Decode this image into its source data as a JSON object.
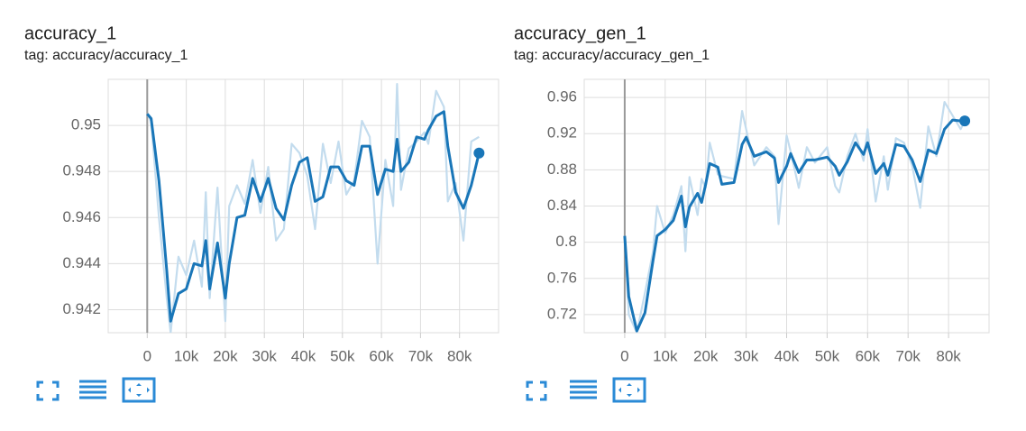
{
  "chart_data": [
    {
      "type": "line",
      "title": "accuracy_1",
      "subtitle": "tag: accuracy/accuracy_1",
      "x": [
        0,
        1000,
        3000,
        5000,
        6000,
        8000,
        10000,
        12000,
        14000,
        15000,
        16000,
        18000,
        20000,
        21000,
        23000,
        25000,
        27000,
        29000,
        31000,
        33000,
        35000,
        37000,
        39000,
        41000,
        43000,
        45000,
        47000,
        49000,
        51000,
        53000,
        55000,
        57000,
        59000,
        61000,
        63000,
        64000,
        65000,
        67000,
        69000,
        71000,
        72000,
        74000,
        76000,
        77000,
        79000,
        81000,
        83000,
        85000
      ],
      "series": [
        {
          "color": "#c3dcee",
          "values": [
            0.9505,
            0.9502,
            0.946,
            0.9425,
            0.941,
            0.9443,
            0.9435,
            0.945,
            0.943,
            0.9471,
            0.9425,
            0.9473,
            0.9415,
            0.9465,
            0.9474,
            0.9466,
            0.9485,
            0.9462,
            0.9482,
            0.945,
            0.9455,
            0.9492,
            0.9488,
            0.9478,
            0.9455,
            0.9492,
            0.9475,
            0.9493,
            0.947,
            0.9476,
            0.9502,
            0.9495,
            0.944,
            0.9485,
            0.9465,
            0.9518,
            0.9472,
            0.949,
            0.9493,
            0.9497,
            0.9492,
            0.9515,
            0.9508,
            0.9467,
            0.9475,
            0.945,
            0.9493,
            0.9495
          ]
        },
        {
          "color": "#1976b8",
          "values": [
            0.9505,
            0.9503,
            0.9476,
            0.9437,
            0.9415,
            0.9427,
            0.9429,
            0.944,
            0.9439,
            0.945,
            0.9429,
            0.9449,
            0.9425,
            0.944,
            0.946,
            0.9461,
            0.9477,
            0.9467,
            0.9477,
            0.9464,
            0.9459,
            0.9474,
            0.9484,
            0.9486,
            0.9467,
            0.9469,
            0.9482,
            0.9482,
            0.9476,
            0.9474,
            0.9491,
            0.9491,
            0.947,
            0.9481,
            0.948,
            0.9494,
            0.948,
            0.9484,
            0.9495,
            0.9494,
            0.9498,
            0.9504,
            0.9506,
            0.9491,
            0.9471,
            0.9464,
            0.9474,
            0.9488
          ]
        }
      ],
      "xlim": [
        -10000,
        90000
      ],
      "xticks": [
        0,
        {
          "value": 10000,
          "label": "10k"
        },
        {
          "value": 20000,
          "label": "20k"
        },
        {
          "value": 30000,
          "label": "30k"
        },
        {
          "value": 40000,
          "label": "40k"
        },
        {
          "value": 50000,
          "label": "50k"
        },
        {
          "value": 60000,
          "label": "60k"
        },
        {
          "value": 70000,
          "label": "70k"
        },
        {
          "value": 80000,
          "label": "80k"
        }
      ],
      "ylim": [
        0.941,
        0.952
      ],
      "yticks": [
        0.942,
        0.944,
        0.946,
        0.948,
        0.95
      ],
      "grid": true
    },
    {
      "type": "line",
      "title": "accuracy_gen_1",
      "subtitle": "tag: accuracy/accuracy_gen_1",
      "x": [
        0,
        1000,
        3000,
        5000,
        7000,
        8000,
        10000,
        12000,
        14000,
        15000,
        16000,
        18000,
        19000,
        20000,
        21000,
        23000,
        24000,
        27000,
        29000,
        30000,
        32000,
        35000,
        37000,
        38000,
        40000,
        41000,
        43000,
        45000,
        47000,
        50000,
        52000,
        53000,
        55000,
        57000,
        59000,
        60000,
        62000,
        64000,
        65000,
        67000,
        69000,
        71000,
        73000,
        75000,
        77000,
        79000,
        81000,
        83000,
        84000
      ],
      "series": [
        {
          "color": "#c3dcee",
          "values": [
            0.807,
            0.72,
            0.7,
            0.744,
            0.79,
            0.84,
            0.81,
            0.83,
            0.862,
            0.79,
            0.872,
            0.83,
            0.87,
            0.86,
            0.91,
            0.875,
            0.873,
            0.87,
            0.945,
            0.925,
            0.885,
            0.905,
            0.895,
            0.82,
            0.918,
            0.9,
            0.86,
            0.905,
            0.888,
            0.905,
            0.862,
            0.855,
            0.895,
            0.92,
            0.89,
            0.925,
            0.845,
            0.895,
            0.858,
            0.915,
            0.91,
            0.885,
            0.838,
            0.928,
            0.895,
            0.955,
            0.94,
            0.925,
            0.934
          ]
        },
        {
          "color": "#1976b8",
          "values": [
            0.807,
            0.74,
            0.702,
            0.722,
            0.78,
            0.807,
            0.814,
            0.824,
            0.851,
            0.817,
            0.839,
            0.854,
            0.844,
            0.864,
            0.887,
            0.883,
            0.864,
            0.866,
            0.908,
            0.916,
            0.895,
            0.9,
            0.893,
            0.866,
            0.884,
            0.898,
            0.877,
            0.891,
            0.891,
            0.894,
            0.884,
            0.874,
            0.889,
            0.91,
            0.897,
            0.91,
            0.876,
            0.887,
            0.874,
            0.908,
            0.906,
            0.891,
            0.867,
            0.902,
            0.898,
            0.925,
            0.935,
            0.934,
            0.934
          ]
        }
      ],
      "xlim": [
        -10000,
        90000
      ],
      "xticks": [
        0,
        {
          "value": 10000,
          "label": "10k"
        },
        {
          "value": 20000,
          "label": "20k"
        },
        {
          "value": 30000,
          "label": "30k"
        },
        {
          "value": 40000,
          "label": "40k"
        },
        {
          "value": 50000,
          "label": "50k"
        },
        {
          "value": 60000,
          "label": "60k"
        },
        {
          "value": 70000,
          "label": "70k"
        },
        {
          "value": 80000,
          "label": "80k"
        }
      ],
      "ylim": [
        0.7,
        0.98
      ],
      "yticks": [
        0.72,
        0.76,
        0.8,
        0.84,
        0.88,
        0.92,
        0.96
      ],
      "grid": true
    }
  ]
}
